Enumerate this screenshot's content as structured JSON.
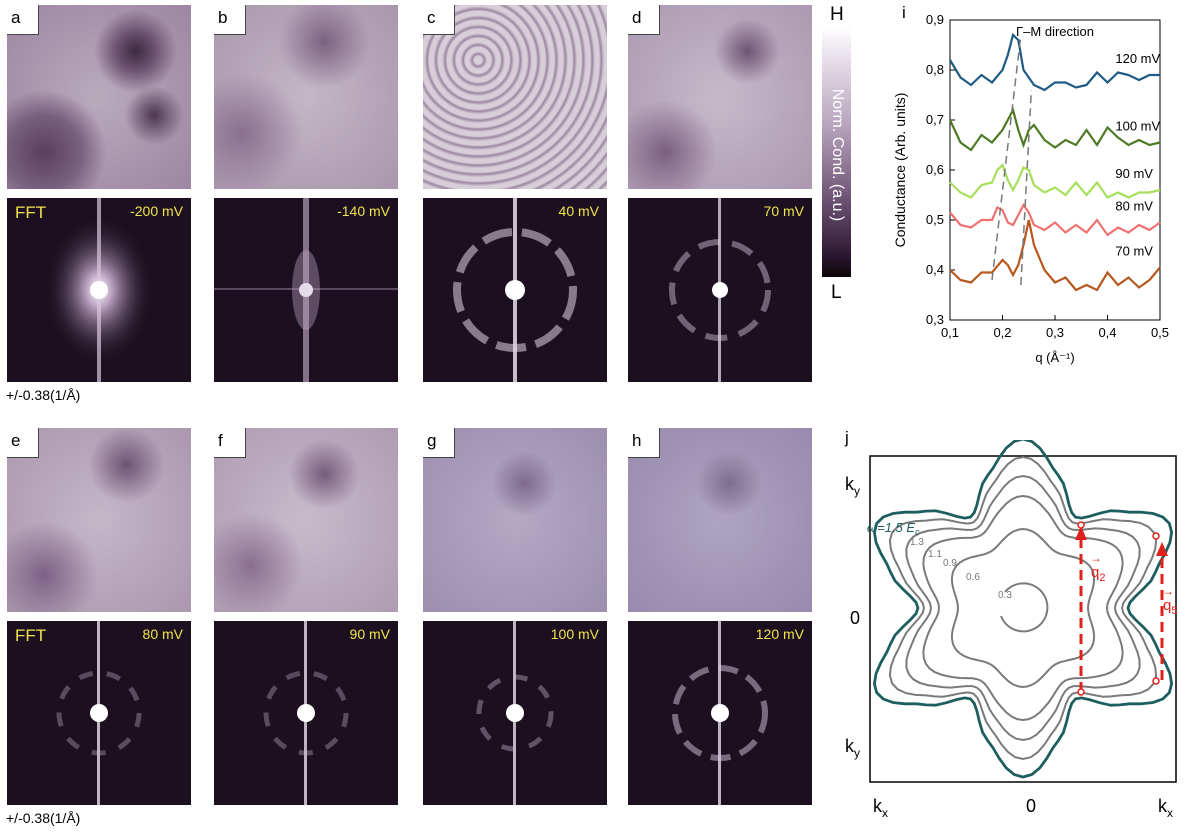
{
  "top_row": {
    "stm_labels": [
      "a",
      "b",
      "c",
      "d"
    ],
    "fft_label": "FFT",
    "energies": [
      "-200 mV",
      "-140 mV",
      "40 mV",
      "70 mV"
    ],
    "scale": "+/-0.38(1/Å)"
  },
  "bottom_row": {
    "stm_labels": [
      "e",
      "f",
      "g",
      "h"
    ],
    "fft_label": "FFT",
    "energies": [
      "80 mV",
      "90 mV",
      "100 mV",
      "120 mV"
    ],
    "scale": "+/-0.38(1/Å)"
  },
  "colorbar": {
    "high": "H",
    "low": "L",
    "title": "Norm. Cond. (a.u.)"
  },
  "panel_i": {
    "label": "i",
    "ylabel": "Conductance (Arb. units)",
    "xlabel": "q (Å⁻¹)",
    "annotation": "Γ–M direction",
    "chart_data": {
      "type": "line",
      "xlim": [
        0.1,
        0.5
      ],
      "ylim": [
        0.3,
        0.9
      ],
      "xticks": [
        "0,1",
        "0,2",
        "0,3",
        "0,4",
        "0,5"
      ],
      "yticks": [
        "0,3",
        "0,4",
        "0,5",
        "0,6",
        "0,7",
        "0,8",
        "0,9"
      ],
      "series": [
        {
          "name": "120 mV",
          "color": "#1d5a84",
          "x": [
            0.1,
            0.12,
            0.14,
            0.16,
            0.18,
            0.2,
            0.21,
            0.22,
            0.23,
            0.24,
            0.26,
            0.28,
            0.3,
            0.32,
            0.34,
            0.36,
            0.38,
            0.4,
            0.42,
            0.44,
            0.46,
            0.48,
            0.5
          ],
          "y": [
            0.82,
            0.785,
            0.77,
            0.79,
            0.775,
            0.8,
            0.83,
            0.87,
            0.86,
            0.8,
            0.77,
            0.76,
            0.775,
            0.775,
            0.765,
            0.77,
            0.795,
            0.775,
            0.795,
            0.79,
            0.78,
            0.79,
            0.79
          ]
        },
        {
          "name": "100 mV",
          "color": "#4e7a25",
          "x": [
            0.1,
            0.12,
            0.14,
            0.16,
            0.18,
            0.2,
            0.21,
            0.22,
            0.23,
            0.24,
            0.25,
            0.26,
            0.28,
            0.3,
            0.32,
            0.34,
            0.36,
            0.38,
            0.4,
            0.42,
            0.44,
            0.46,
            0.48,
            0.5
          ],
          "y": [
            0.7,
            0.655,
            0.64,
            0.67,
            0.655,
            0.68,
            0.7,
            0.72,
            0.68,
            0.65,
            0.68,
            0.69,
            0.66,
            0.645,
            0.66,
            0.65,
            0.68,
            0.65,
            0.685,
            0.665,
            0.65,
            0.66,
            0.65,
            0.655
          ]
        },
        {
          "name": "90 mV",
          "color": "#a6e05a",
          "x": [
            0.1,
            0.12,
            0.14,
            0.16,
            0.18,
            0.19,
            0.2,
            0.21,
            0.22,
            0.23,
            0.24,
            0.25,
            0.26,
            0.28,
            0.3,
            0.32,
            0.34,
            0.36,
            0.38,
            0.4,
            0.42,
            0.44,
            0.46,
            0.48,
            0.5
          ],
          "y": [
            0.575,
            0.555,
            0.545,
            0.57,
            0.575,
            0.6,
            0.61,
            0.58,
            0.56,
            0.58,
            0.605,
            0.6,
            0.57,
            0.555,
            0.565,
            0.55,
            0.575,
            0.55,
            0.575,
            0.545,
            0.555,
            0.545,
            0.555,
            0.555,
            0.56
          ]
        },
        {
          "name": "80 mV",
          "color": "#f07070",
          "x": [
            0.1,
            0.12,
            0.14,
            0.16,
            0.18,
            0.19,
            0.2,
            0.21,
            0.22,
            0.23,
            0.24,
            0.25,
            0.26,
            0.28,
            0.3,
            0.32,
            0.34,
            0.36,
            0.38,
            0.4,
            0.42,
            0.44,
            0.46,
            0.48,
            0.5
          ],
          "y": [
            0.515,
            0.49,
            0.485,
            0.5,
            0.5,
            0.525,
            0.52,
            0.495,
            0.49,
            0.51,
            0.53,
            0.515,
            0.49,
            0.48,
            0.495,
            0.475,
            0.49,
            0.475,
            0.5,
            0.47,
            0.485,
            0.475,
            0.49,
            0.48,
            0.495
          ]
        },
        {
          "name": "70 mV",
          "color": "#b8581e",
          "x": [
            0.1,
            0.12,
            0.14,
            0.16,
            0.18,
            0.2,
            0.21,
            0.22,
            0.23,
            0.24,
            0.25,
            0.26,
            0.28,
            0.3,
            0.32,
            0.34,
            0.36,
            0.38,
            0.4,
            0.42,
            0.44,
            0.46,
            0.48,
            0.5
          ],
          "y": [
            0.4,
            0.38,
            0.375,
            0.395,
            0.395,
            0.42,
            0.41,
            0.39,
            0.41,
            0.45,
            0.5,
            0.45,
            0.4,
            0.375,
            0.385,
            0.36,
            0.37,
            0.36,
            0.395,
            0.37,
            0.385,
            0.365,
            0.38,
            0.405
          ]
        }
      ],
      "dashed_lines": [
        {
          "x": [
            0.18,
            0.235
          ],
          "y": [
            0.38,
            0.87
          ]
        },
        {
          "x": [
            0.235,
            0.255
          ],
          "y": [
            0.37,
            0.76
          ]
        }
      ]
    }
  },
  "panel_j": {
    "label": "j",
    "omega_label": "ω=1.5 E",
    "omega_sub": "c",
    "contour_labels": [
      "1.3",
      "1.1",
      "0.9",
      "0.6",
      "0.3"
    ],
    "ky": "k",
    "ky_sub": "y",
    "kx": "k",
    "kx_sub": "x",
    "zero": "0",
    "q2": "q",
    "q2_sub": "2",
    "q5": "q",
    "q5_sub": "5"
  }
}
